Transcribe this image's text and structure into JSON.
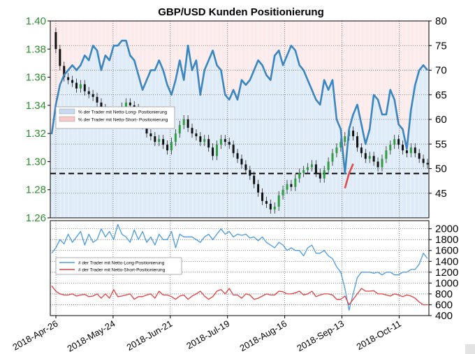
{
  "title": "GBP/USD Kunden Positionierung",
  "chart_data": {
    "type": "line",
    "title": "GBP/USD Kunden Positionierung",
    "x_tick_labels": [
      "2018-Apr-26",
      "2018-May-24",
      "2018-Jun-21",
      "2018-Jul-19",
      "2018-Aug-16",
      "2018-Sep-13",
      "2018-Oct-11"
    ],
    "top_panel": {
      "left_axis": {
        "ylim": [
          1.26,
          1.4
        ],
        "ticks": [
          "1.26",
          "1.28",
          "1.30",
          "1.32",
          "1.34",
          "1.36",
          "1.38",
          "1.40"
        ],
        "color": "#2e8b2e"
      },
      "right_axis": {
        "ylim": [
          40,
          80
        ],
        "ticks": [
          "45",
          "50",
          "55",
          "60",
          "65",
          "70",
          "75",
          "80"
        ]
      },
      "reference_line": {
        "value": 49,
        "axis": "right",
        "style": "dashed"
      },
      "legend": [
        {
          "label": "% der Trader mit Netto-Long- Positionierung",
          "color": "#c6dcf3"
        },
        {
          "label": "% der Trader mit Netto-Short- Positionierung",
          "color": "#f7c9c9"
        }
      ],
      "series": [
        {
          "name": "% Netto-Long",
          "axis": "right",
          "color": "#3a86c0",
          "values": [
            57,
            63,
            67,
            69,
            70,
            71,
            70,
            71,
            73,
            72,
            75,
            74,
            70,
            73,
            72,
            75,
            75,
            76,
            76,
            73,
            72,
            69,
            66,
            68,
            70,
            70,
            72,
            70,
            67,
            65,
            68,
            72,
            68,
            75,
            70,
            72,
            65,
            70,
            72,
            74,
            71,
            70,
            65,
            64,
            66,
            64,
            68,
            67,
            68,
            70,
            72,
            71,
            69,
            68,
            73,
            74,
            71,
            73,
            75,
            74,
            71,
            70,
            68,
            66,
            64,
            63,
            68,
            66,
            68,
            60,
            58,
            49,
            58,
            61,
            63,
            59,
            55,
            58,
            65,
            64,
            61,
            61,
            66,
            64,
            59,
            58,
            54,
            62,
            67,
            70,
            71,
            70
          ]
        },
        {
          "name": "GBP/USD",
          "axis": "left",
          "color": "#111111",
          "values": [
            1.392,
            1.38,
            1.368,
            1.36,
            1.358,
            1.356,
            1.352,
            1.355,
            1.35,
            1.348,
            1.346,
            1.342,
            1.338,
            1.336,
            1.334,
            1.333,
            1.336,
            1.339,
            1.342,
            1.34,
            1.338,
            1.333,
            1.326,
            1.32,
            1.318,
            1.314,
            1.316,
            1.312,
            1.308,
            1.314,
            1.32,
            1.326,
            1.33,
            1.324,
            1.32,
            1.318,
            1.314,
            1.316,
            1.31,
            1.304,
            1.312,
            1.316,
            1.314,
            1.312,
            1.306,
            1.302,
            1.298,
            1.294,
            1.29,
            1.284,
            1.278,
            1.272,
            1.27,
            1.266,
            1.268,
            1.276,
            1.28,
            1.284,
            1.282,
            1.288,
            1.292,
            1.294,
            1.296,
            1.298,
            1.292,
            1.288,
            1.294,
            1.3,
            1.306,
            1.31,
            1.314,
            1.318,
            1.322,
            1.318,
            1.31,
            1.306,
            1.302,
            1.304,
            1.3,
            1.296,
            1.302,
            1.308,
            1.312,
            1.316,
            1.312,
            1.308,
            1.306,
            1.31,
            1.306,
            1.302,
            1.299,
            1.298
          ]
        }
      ]
    },
    "bottom_panel": {
      "ylim": [
        400,
        2150
      ],
      "ticks": [
        "400",
        "600",
        "800",
        "1000",
        "1200",
        "1400",
        "1600",
        "1800",
        "2000"
      ],
      "legend": [
        {
          "label": "# der Trader mit Netto-Long-Positionierung",
          "color": "#4a9be0"
        },
        {
          "label": "# der Trader mit Netto-Short-Positionierung",
          "color": "#e04040"
        }
      ],
      "series": [
        {
          "name": "# Netto-Long",
          "color": "#4a9be0",
          "values": [
            1550,
            1650,
            1800,
            1720,
            1900,
            1750,
            1850,
            1950,
            1700,
            1900,
            1750,
            1800,
            2000,
            1850,
            1950,
            1800,
            2080,
            1900,
            1850,
            1750,
            1980,
            1800,
            1950,
            1750,
            1850,
            1700,
            1900,
            1800,
            1800,
            1950,
            1650,
            1900,
            1850,
            1850,
            1850,
            1800,
            1750,
            1850,
            1900,
            1800,
            1900,
            2000,
            1900,
            1950,
            1850,
            1900,
            1880,
            1900,
            1830,
            1850,
            1780,
            1850,
            1750,
            1700,
            1650,
            1750,
            1700,
            1600,
            1650,
            1600,
            1600,
            1500,
            1650,
            1700,
            1550,
            1550,
            1600,
            1500,
            1450,
            1300,
            1200,
            900,
            500,
            800,
            1100,
            1200,
            1200,
            1200,
            1180,
            1200,
            1150,
            1200,
            1200,
            1150,
            1150,
            1200,
            1200,
            1250,
            1250,
            1350,
            1550,
            1450
          ]
        },
        {
          "name": "# Netto-Short",
          "color": "#e04040",
          "values": [
            950,
            850,
            800,
            780,
            780,
            800,
            760,
            780,
            790,
            750,
            760,
            800,
            720,
            800,
            720,
            880,
            750,
            760,
            780,
            800,
            700,
            750,
            750,
            780,
            800,
            720,
            850,
            780,
            780,
            750,
            700,
            760,
            780,
            700,
            760,
            800,
            850,
            760,
            700,
            750,
            850,
            880,
            800,
            900,
            780,
            780,
            720,
            800,
            780,
            700,
            720,
            760,
            800,
            780,
            780,
            850,
            840,
            800,
            800,
            820,
            850,
            780,
            800,
            850,
            750,
            780,
            800,
            800,
            780,
            700,
            700,
            760,
            600,
            700,
            800,
            900,
            850,
            850,
            860,
            800,
            800,
            780,
            760,
            800,
            780,
            750,
            780,
            760,
            720,
            650,
            600,
            600
          ]
        }
      ]
    }
  }
}
